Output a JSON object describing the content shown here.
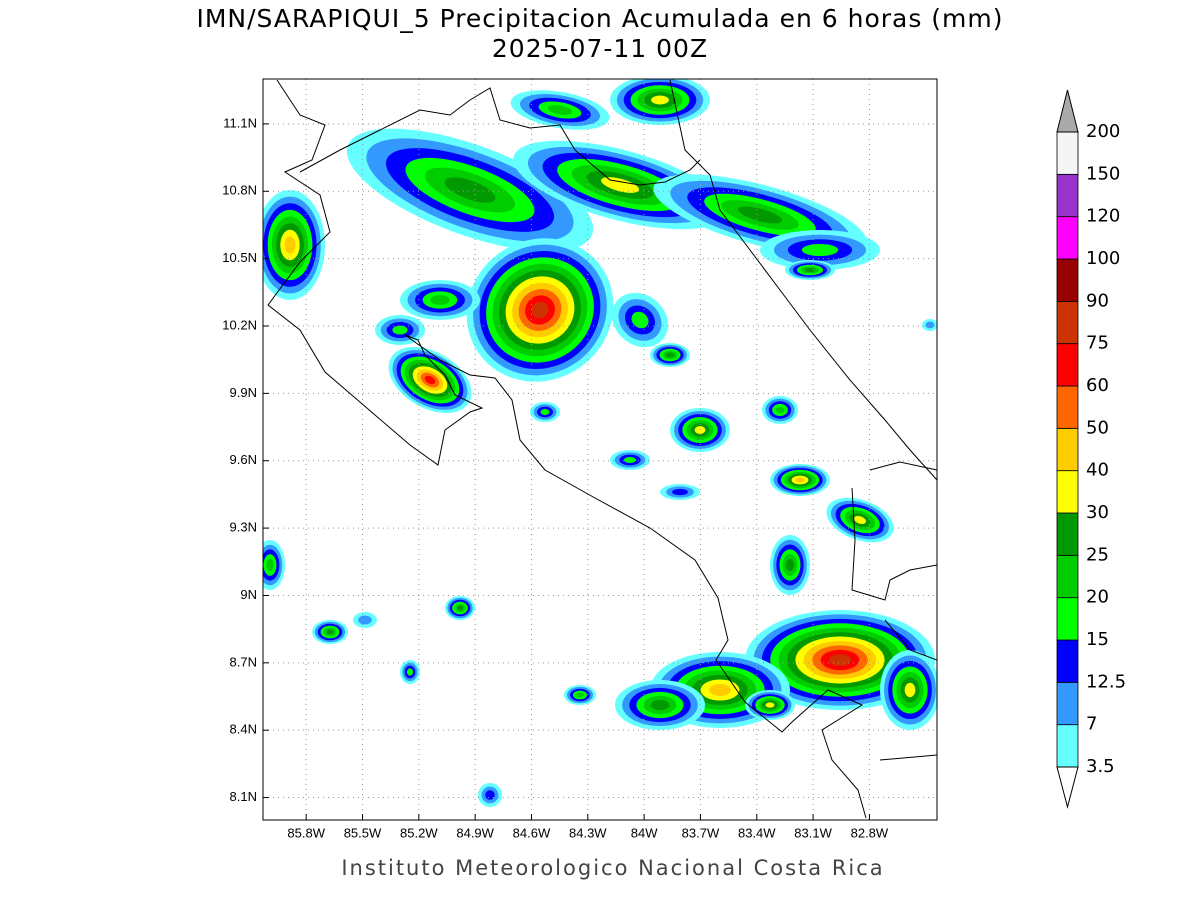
{
  "map": {
    "title": "IMN/SARAPIQUI_5 Precipitacion Acumulada en 6 horas (mm)",
    "subtitle": "2025-07-11 00Z",
    "lonlim": [
      -86.03,
      -82.44
    ],
    "latlim": [
      8.0,
      11.3
    ],
    "lonticks": [
      {
        "value": -85.8,
        "label": "85.8W"
      },
      {
        "value": -85.5,
        "label": "85.5W"
      },
      {
        "value": -85.2,
        "label": "85.2W"
      },
      {
        "value": -84.9,
        "label": "84.9W"
      },
      {
        "value": -84.6,
        "label": "84.6W"
      },
      {
        "value": -84.3,
        "label": "84.3W"
      },
      {
        "value": -84.0,
        "label": "84W"
      },
      {
        "value": -83.7,
        "label": "83.7W"
      },
      {
        "value": -83.4,
        "label": "83.4W"
      },
      {
        "value": -83.1,
        "label": "83.1W"
      },
      {
        "value": -82.8,
        "label": "82.8W"
      }
    ],
    "latticks": [
      {
        "value": 11.1,
        "label": "11.1N"
      },
      {
        "value": 10.8,
        "label": "10.8N"
      },
      {
        "value": 10.5,
        "label": "10.5N"
      },
      {
        "value": 10.2,
        "label": "10.2N"
      },
      {
        "value": 9.9,
        "label": "9.9N"
      },
      {
        "value": 9.6,
        "label": "9.6N"
      },
      {
        "value": 9.3,
        "label": "9.3N"
      },
      {
        "value": 9.0,
        "label": "9N"
      },
      {
        "value": 8.7,
        "label": "8.7N"
      },
      {
        "value": 8.4,
        "label": "8.4N"
      },
      {
        "value": 8.1,
        "label": "8.1N"
      }
    ],
    "grid": true,
    "colorbar": {
      "levels": [
        3.5,
        7,
        12.5,
        15,
        20,
        25,
        30,
        40,
        50,
        60,
        75,
        90,
        100,
        120,
        150,
        200
      ],
      "colors": [
        "#66ffff",
        "#3399ff",
        "#0000ff",
        "#00ff00",
        "#00cc00",
        "#009900",
        "#ffff00",
        "#ffcc00",
        "#ff6600",
        "#ff0000",
        "#cc3300",
        "#990000",
        "#ff00ff",
        "#9933cc",
        "#f5f5f5"
      ],
      "under_color": "#ffffff",
      "over_color": "#aaaaaa"
    },
    "footer": "Instituto Meteorologico Nacional Costa Rica"
  }
}
